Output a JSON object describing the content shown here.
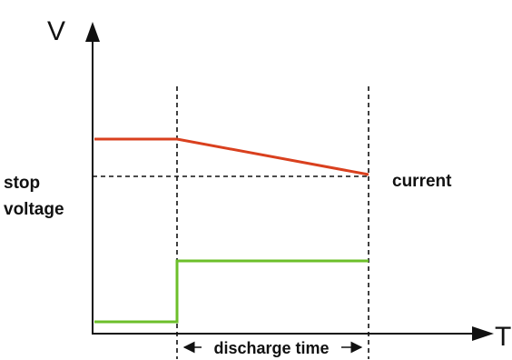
{
  "axes": {
    "y_label": "V",
    "x_label": "T"
  },
  "labels": {
    "stop_voltage_line1": "stop",
    "stop_voltage_line2": "voltage",
    "current": "current",
    "discharge_time": "discharge time"
  },
  "colors": {
    "voltage_curve": "#d9401e",
    "current_curve": "#6cbf2a",
    "axis": "#111111",
    "dashed": "#111111"
  }
}
